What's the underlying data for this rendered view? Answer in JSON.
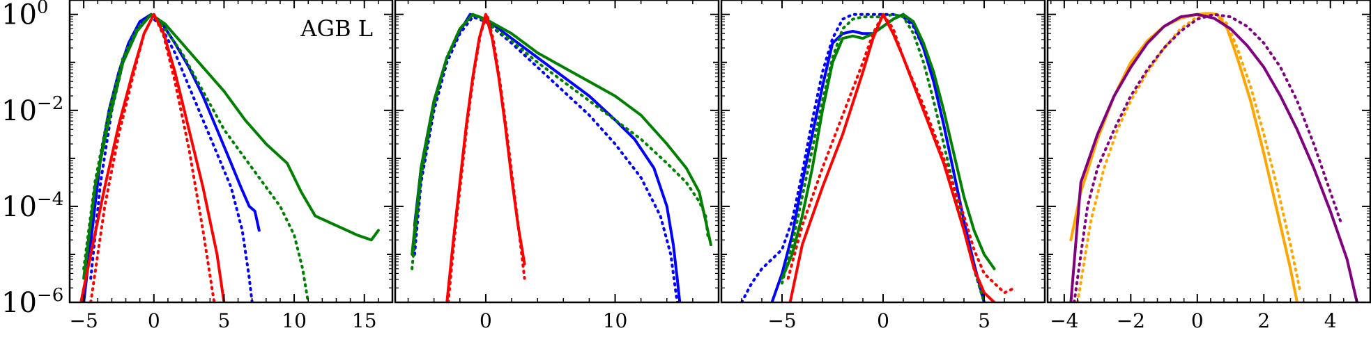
{
  "chart_data": [
    {
      "type": "line",
      "annotation": "AGB L",
      "ylim": [
        -6,
        0.3
      ],
      "y_scale": "log",
      "y_tick_labels": [
        {
          "base": "10",
          "exp": "0",
          "value": 0
        },
        {
          "base": "10",
          "exp": "−2",
          "value": -2
        },
        {
          "base": "10",
          "exp": "−4",
          "value": -4
        },
        {
          "base": "10",
          "exp": "−6",
          "value": -6
        }
      ],
      "xlim": [
        -6,
        17
      ],
      "x_ticks": [
        -5,
        0,
        5,
        10,
        15
      ],
      "x_tick_labels": [
        "−5",
        "0",
        "5",
        "10",
        "15"
      ],
      "series": [
        {
          "color": "#0000ff",
          "style": "solid",
          "x": [
            -5.0,
            -4.6,
            -4.2,
            -3.8,
            -3.2,
            -2.5,
            -1.8,
            -1.0,
            -0.2,
            0.5,
            1.5,
            2.5,
            3.5,
            4.5,
            5.5,
            6.2,
            6.8,
            7.2,
            7.5
          ],
          "y": [
            -6.0,
            -5.0,
            -4.0,
            -3.0,
            -2.0,
            -1.2,
            -0.6,
            -0.15,
            0.0,
            -0.15,
            -0.6,
            -1.1,
            -1.7,
            -2.4,
            -3.1,
            -3.6,
            -4.0,
            -4.1,
            -4.5
          ]
        },
        {
          "color": "#0000ff",
          "style": "dotted",
          "x": [
            -4.5,
            -3.8,
            -3.0,
            -2.2,
            -1.2,
            -0.3,
            0.5,
            1.5,
            2.5,
            3.5,
            4.5,
            5.5,
            6.3,
            6.8,
            7.0
          ],
          "y": [
            -5.5,
            -3.5,
            -2.0,
            -1.0,
            -0.3,
            0.0,
            -0.25,
            -0.8,
            -1.5,
            -2.2,
            -2.9,
            -3.6,
            -4.5,
            -5.5,
            -6.0
          ]
        },
        {
          "color": "#008000",
          "style": "solid",
          "x": [
            -5.0,
            -4.2,
            -3.2,
            -2.2,
            -1.2,
            -0.2,
            0.8,
            2.0,
            3.5,
            5.0,
            6.5,
            8.0,
            9.5,
            10.5,
            11.5,
            13.0,
            14.5,
            15.5,
            16.0
          ],
          "y": [
            -5.5,
            -3.6,
            -2.2,
            -1.0,
            -0.35,
            0.0,
            -0.2,
            -0.6,
            -1.1,
            -1.6,
            -2.2,
            -2.7,
            -3.1,
            -3.7,
            -4.2,
            -4.4,
            -4.6,
            -4.7,
            -4.5
          ]
        },
        {
          "color": "#008000",
          "style": "dotted",
          "x": [
            -5.0,
            -4.2,
            -3.2,
            -2.2,
            -1.2,
            -0.2,
            0.8,
            2.0,
            3.5,
            5.0,
            6.5,
            8.0,
            9.0,
            10.0,
            10.6,
            11.0
          ],
          "y": [
            -5.3,
            -3.5,
            -2.0,
            -0.9,
            -0.3,
            0.0,
            -0.3,
            -0.8,
            -1.6,
            -2.4,
            -3.0,
            -3.6,
            -4.0,
            -4.6,
            -5.3,
            -6.0
          ]
        },
        {
          "color": "#ff0000",
          "style": "solid",
          "x": [
            -5.2,
            -4.5,
            -3.5,
            -2.5,
            -1.5,
            -0.7,
            0.0,
            0.7,
            1.5,
            2.5,
            3.5,
            4.5,
            5.0
          ],
          "y": [
            -6.0,
            -5.0,
            -3.6,
            -2.3,
            -1.2,
            -0.4,
            0.0,
            -0.4,
            -1.2,
            -2.4,
            -3.6,
            -5.0,
            -6.0
          ]
        },
        {
          "color": "#ff0000",
          "style": "dotted",
          "x": [
            -4.5,
            -3.5,
            -2.5,
            -1.5,
            -0.7,
            0.0,
            0.7,
            1.5,
            2.5,
            3.5,
            4.3
          ],
          "y": [
            -6.0,
            -4.0,
            -2.5,
            -1.3,
            -0.4,
            0.0,
            -0.45,
            -1.4,
            -2.8,
            -4.5,
            -6.0
          ]
        }
      ]
    },
    {
      "type": "line",
      "ylim": [
        -6,
        0.3
      ],
      "y_scale": "log",
      "xlim": [
        -7,
        18
      ],
      "x_ticks": [
        0,
        10
      ],
      "x_tick_labels": [
        "0",
        "10"
      ],
      "series": [
        {
          "color": "#0000ff",
          "style": "solid",
          "x": [
            -5.5,
            -5.0,
            -4.0,
            -3.0,
            -2.0,
            -1.2,
            -0.5,
            0.5,
            2.0,
            4.0,
            6.0,
            8.0,
            10.0,
            11.5,
            13.0,
            14.0,
            14.5,
            14.8,
            15.0
          ],
          "y": [
            -4.4,
            -3.2,
            -1.8,
            -0.9,
            -0.35,
            0.0,
            -0.05,
            -0.2,
            -0.5,
            -0.9,
            -1.3,
            -1.7,
            -2.2,
            -2.6,
            -3.2,
            -4.0,
            -4.8,
            -5.5,
            -6.0
          ]
        },
        {
          "color": "#0000ff",
          "style": "dotted",
          "x": [
            -5.5,
            -5.0,
            -4.0,
            -3.0,
            -2.0,
            -1.0,
            0.0,
            2.0,
            4.0,
            6.0,
            8.0,
            10.0,
            12.0,
            13.5,
            14.3,
            14.8
          ],
          "y": [
            -5.0,
            -3.5,
            -2.0,
            -1.0,
            -0.4,
            -0.05,
            -0.15,
            -0.6,
            -1.1,
            -1.6,
            -2.1,
            -2.7,
            -3.4,
            -4.2,
            -5.0,
            -6.0
          ]
        },
        {
          "color": "#008000",
          "style": "solid",
          "x": [
            -5.7,
            -5.0,
            -4.0,
            -3.0,
            -2.0,
            -1.0,
            0.0,
            2.0,
            4.0,
            6.0,
            8.0,
            10.0,
            12.0,
            14.0,
            15.5,
            16.5,
            17.0,
            17.4
          ],
          "y": [
            -5.0,
            -3.2,
            -1.8,
            -0.9,
            -0.3,
            0.0,
            -0.1,
            -0.4,
            -0.8,
            -1.1,
            -1.4,
            -1.7,
            -2.1,
            -2.7,
            -3.2,
            -3.7,
            -4.3,
            -4.8
          ]
        },
        {
          "color": "#008000",
          "style": "dotted",
          "x": [
            -5.7,
            -5.0,
            -4.0,
            -3.0,
            -2.0,
            -1.0,
            0.0,
            2.0,
            4.0,
            6.0,
            8.0,
            10.0,
            12.0,
            14.0,
            15.5,
            16.5,
            17.0,
            17.2
          ],
          "y": [
            -5.3,
            -3.4,
            -1.9,
            -0.9,
            -0.3,
            0.0,
            -0.15,
            -0.55,
            -1.0,
            -1.4,
            -1.8,
            -2.2,
            -2.6,
            -3.1,
            -3.5,
            -3.9,
            -4.2,
            -4.7
          ]
        },
        {
          "color": "#ff0000",
          "style": "solid",
          "x": [
            -3.0,
            -2.5,
            -2.0,
            -1.5,
            -1.0,
            -0.5,
            0.0,
            0.5,
            1.0,
            1.5,
            2.0,
            2.5,
            3.0
          ],
          "y": [
            -6.0,
            -4.7,
            -3.5,
            -2.3,
            -1.3,
            -0.5,
            0.0,
            -0.5,
            -1.3,
            -2.3,
            -3.4,
            -4.4,
            -5.2
          ]
        },
        {
          "color": "#ff0000",
          "style": "dotted",
          "x": [
            -2.9,
            -2.4,
            -1.9,
            -1.4,
            -0.9,
            -0.4,
            0.1,
            0.6,
            1.1,
            1.6,
            2.1,
            2.6,
            3.0
          ],
          "y": [
            -6.0,
            -4.6,
            -3.4,
            -2.2,
            -1.2,
            -0.4,
            0.0,
            -0.55,
            -1.4,
            -2.4,
            -3.5,
            -4.6,
            -5.5
          ]
        }
      ]
    },
    {
      "type": "line",
      "ylim": [
        -6,
        0.3
      ],
      "y_scale": "log",
      "xlim": [
        -8,
        8
      ],
      "x_ticks": [
        -5,
        0,
        5
      ],
      "x_tick_labels": [
        "−5",
        "0",
        "5"
      ],
      "series": [
        {
          "color": "#0000ff",
          "style": "solid",
          "x": [
            -5.5,
            -5.0,
            -4.5,
            -4.0,
            -3.5,
            -3.0,
            -2.5,
            -2.0,
            -1.5,
            -1.0,
            -0.5,
            0.0,
            0.5,
            1.0,
            1.5,
            2.0,
            2.5,
            3.0,
            3.5,
            4.0,
            4.5,
            5.0
          ],
          "y": [
            -6.0,
            -5.4,
            -4.6,
            -3.5,
            -2.5,
            -1.5,
            -0.6,
            -0.4,
            -0.35,
            -0.4,
            -0.4,
            -0.25,
            -0.1,
            0.0,
            -0.2,
            -0.7,
            -1.4,
            -2.3,
            -3.3,
            -4.3,
            -5.2,
            -6.0
          ]
        },
        {
          "color": "#0000ff",
          "style": "dotted",
          "x": [
            -7.0,
            -6.5,
            -6.0,
            -5.5,
            -5.0,
            -4.5,
            -4.0,
            -3.5,
            -3.0,
            -2.5,
            -2.0,
            -1.5,
            -1.0,
            -0.5,
            0.0,
            0.5,
            1.0,
            1.5,
            2.0,
            2.5,
            3.0,
            3.5,
            4.0,
            4.5,
            5.0
          ],
          "y": [
            -6.0,
            -5.6,
            -5.3,
            -5.1,
            -4.9,
            -4.3,
            -3.3,
            -2.2,
            -1.2,
            -0.5,
            -0.1,
            0.0,
            0.0,
            0.0,
            0.0,
            0.0,
            -0.05,
            -0.25,
            -0.7,
            -1.4,
            -2.3,
            -3.3,
            -4.3,
            -5.3,
            -6.0
          ]
        },
        {
          "color": "#008000",
          "style": "solid",
          "x": [
            -5.0,
            -4.5,
            -4.0,
            -3.5,
            -3.0,
            -2.5,
            -2.0,
            -1.5,
            -1.0,
            -0.5,
            0.0,
            0.5,
            1.0,
            1.5,
            2.0,
            2.5,
            3.0,
            3.5,
            4.0,
            4.5,
            5.0,
            5.5
          ],
          "y": [
            -5.5,
            -5.0,
            -4.2,
            -3.2,
            -2.0,
            -1.0,
            -0.5,
            -0.45,
            -0.5,
            -0.4,
            -0.25,
            -0.1,
            0.0,
            -0.15,
            -0.6,
            -1.2,
            -2.0,
            -2.9,
            -3.8,
            -4.5,
            -5.0,
            -5.3
          ]
        },
        {
          "color": "#008000",
          "style": "dotted",
          "x": [
            -5.0,
            -4.5,
            -4.0,
            -3.5,
            -3.0,
            -2.5,
            -2.0,
            -1.5,
            -1.0,
            -0.5,
            0.0,
            0.5,
            1.0,
            1.5,
            2.0,
            2.5,
            3.0,
            3.5,
            4.0,
            4.5,
            5.0
          ],
          "y": [
            -5.6,
            -4.8,
            -3.8,
            -2.8,
            -1.8,
            -0.9,
            -0.3,
            -0.1,
            -0.05,
            -0.05,
            -0.05,
            0.0,
            -0.05,
            -0.4,
            -1.0,
            -1.8,
            -2.7,
            -3.6,
            -4.5,
            -5.3,
            -6.0
          ]
        },
        {
          "color": "#ff0000",
          "style": "solid",
          "x": [
            -4.6,
            -4.0,
            -3.0,
            -2.0,
            -1.0,
            -0.5,
            0.0,
            0.5,
            1.0,
            2.0,
            3.0,
            3.5,
            4.0,
            4.5,
            5.0,
            5.5
          ],
          "y": [
            -6.0,
            -4.8,
            -3.6,
            -2.5,
            -1.2,
            -0.5,
            0.0,
            -0.4,
            -0.9,
            -2.0,
            -3.1,
            -3.8,
            -4.5,
            -5.3,
            -5.8,
            -6.0
          ]
        },
        {
          "color": "#ff0000",
          "style": "dotted",
          "x": [
            -4.7,
            -4.0,
            -3.0,
            -2.0,
            -1.0,
            -0.5,
            0.0,
            0.5,
            1.0,
            2.0,
            3.0,
            4.0,
            4.5,
            5.0,
            5.5,
            6.0,
            6.5
          ],
          "y": [
            -5.5,
            -4.4,
            -3.2,
            -2.1,
            -1.0,
            -0.4,
            0.0,
            -0.3,
            -0.9,
            -1.9,
            -3.0,
            -4.2,
            -4.9,
            -5.4,
            -5.6,
            -5.8,
            -5.7
          ]
        }
      ]
    },
    {
      "type": "line",
      "ylim": [
        -6,
        0.3
      ],
      "y_scale": "log",
      "xlim": [
        -4.5,
        5.2
      ],
      "x_ticks": [
        -4,
        -2,
        0,
        2,
        4
      ],
      "x_tick_labels": [
        "−4",
        "−2",
        "0",
        "2",
        "4"
      ],
      "series": [
        {
          "color": "#ffa500",
          "style": "solid",
          "x": [
            -3.8,
            -3.5,
            -3.0,
            -2.5,
            -2.0,
            -1.5,
            -1.0,
            -0.5,
            0.0,
            0.3,
            0.6,
            0.9,
            1.2,
            1.6,
            2.0,
            2.4,
            2.8,
            3.0
          ],
          "y": [
            -4.7,
            -3.7,
            -2.6,
            -1.7,
            -1.0,
            -0.55,
            -0.25,
            -0.08,
            0.0,
            0.02,
            0.0,
            -0.3,
            -0.9,
            -1.8,
            -2.9,
            -4.1,
            -5.3,
            -6.0
          ]
        },
        {
          "color": "#ffa500",
          "style": "dotted",
          "x": [
            -3.6,
            -3.2,
            -2.8,
            -2.4,
            -2.0,
            -1.5,
            -1.0,
            -0.5,
            0.0,
            0.3,
            0.6,
            0.9,
            1.2,
            1.6,
            2.0,
            2.4,
            2.8,
            3.1
          ],
          "y": [
            -6.0,
            -4.3,
            -3.2,
            -2.4,
            -1.8,
            -1.2,
            -0.7,
            -0.3,
            -0.05,
            0.03,
            0.0,
            -0.2,
            -0.7,
            -1.5,
            -2.5,
            -3.6,
            -4.8,
            -5.8
          ]
        },
        {
          "color": "#800080",
          "style": "solid",
          "x": [
            -3.8,
            -3.5,
            -3.0,
            -2.5,
            -2.0,
            -1.5,
            -1.0,
            -0.5,
            0.0,
            0.5,
            1.0,
            1.5,
            2.0,
            2.5,
            3.0,
            3.5,
            4.0,
            4.5,
            4.8
          ],
          "y": [
            -6.0,
            -3.5,
            -2.5,
            -1.7,
            -1.1,
            -0.6,
            -0.25,
            -0.05,
            0.0,
            -0.08,
            -0.3,
            -0.65,
            -1.1,
            -1.7,
            -2.4,
            -3.2,
            -4.1,
            -5.1,
            -6.0
          ]
        },
        {
          "color": "#800080",
          "style": "dotted",
          "x": [
            -3.7,
            -3.3,
            -3.0,
            -2.5,
            -2.0,
            -1.5,
            -1.0,
            -0.5,
            0.0,
            0.5,
            1.0,
            1.5,
            2.0,
            2.5,
            3.0,
            3.5,
            4.0,
            4.3
          ],
          "y": [
            -6.0,
            -4.0,
            -3.2,
            -2.4,
            -1.7,
            -1.15,
            -0.7,
            -0.35,
            -0.1,
            0.0,
            -0.05,
            -0.25,
            -0.6,
            -1.1,
            -1.8,
            -2.7,
            -3.7,
            -4.3
          ]
        }
      ]
    }
  ]
}
